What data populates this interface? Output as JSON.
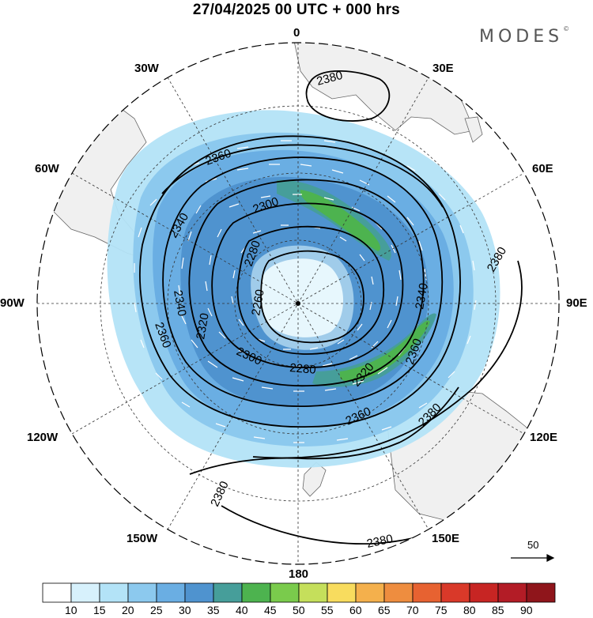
{
  "title": "27/04/2025  00 UTC  + 000 hrs",
  "brand": {
    "name": "MODES",
    "mark": "©"
  },
  "longitude_labels": {
    "top": "0",
    "top_left": "30W",
    "top_right": "30E",
    "upper_left": "60W",
    "upper_right": "60E",
    "left": "90W",
    "right": "90E",
    "lower_left": "120W",
    "lower_right": "120E",
    "bottom_left": "150W",
    "bottom_right": "150E",
    "bottom": "180"
  },
  "contours": {
    "c2380_top": "2380",
    "c2360_a": "2360",
    "c2340_a": "2340",
    "c2300_a": "2300",
    "c2280_a": "2280",
    "c2340_b": "2340",
    "c2260": "2260",
    "c2320_a": "2320",
    "c2360_b": "2360",
    "c2300_b": "2300",
    "c2280_b": "2280",
    "c2320_b": "2320",
    "c2360_c": "2360",
    "c2340_c": "2340",
    "c2360_d": "2360",
    "c2380_right": "2380",
    "c2380_se": "2380",
    "c2380_sw": "2380",
    "c2380_bottom": "2380"
  },
  "vector_scale": {
    "label": "50"
  },
  "colorbar": {
    "colors": [
      "#ffffff",
      "#d7f1fc",
      "#b3e3f7",
      "#8cc9ee",
      "#6aaee3",
      "#4f93cf",
      "#469e9a",
      "#4db34f",
      "#7acb4c",
      "#c5df5b",
      "#f8dc5e",
      "#f4b04c",
      "#ee8d3f",
      "#e76231",
      "#d93929",
      "#c72523",
      "#b31c26",
      "#8f151b"
    ],
    "labels": [
      "10",
      "15",
      "20",
      "25",
      "30",
      "35",
      "40",
      "45",
      "50",
      "55",
      "60",
      "65",
      "70",
      "75",
      "80",
      "85",
      "90"
    ],
    "colors_note_units": "wind speed shading"
  },
  "colors": {
    "land": "#f0f0f0",
    "contour": "#000000",
    "vector": "#ffffff"
  }
}
